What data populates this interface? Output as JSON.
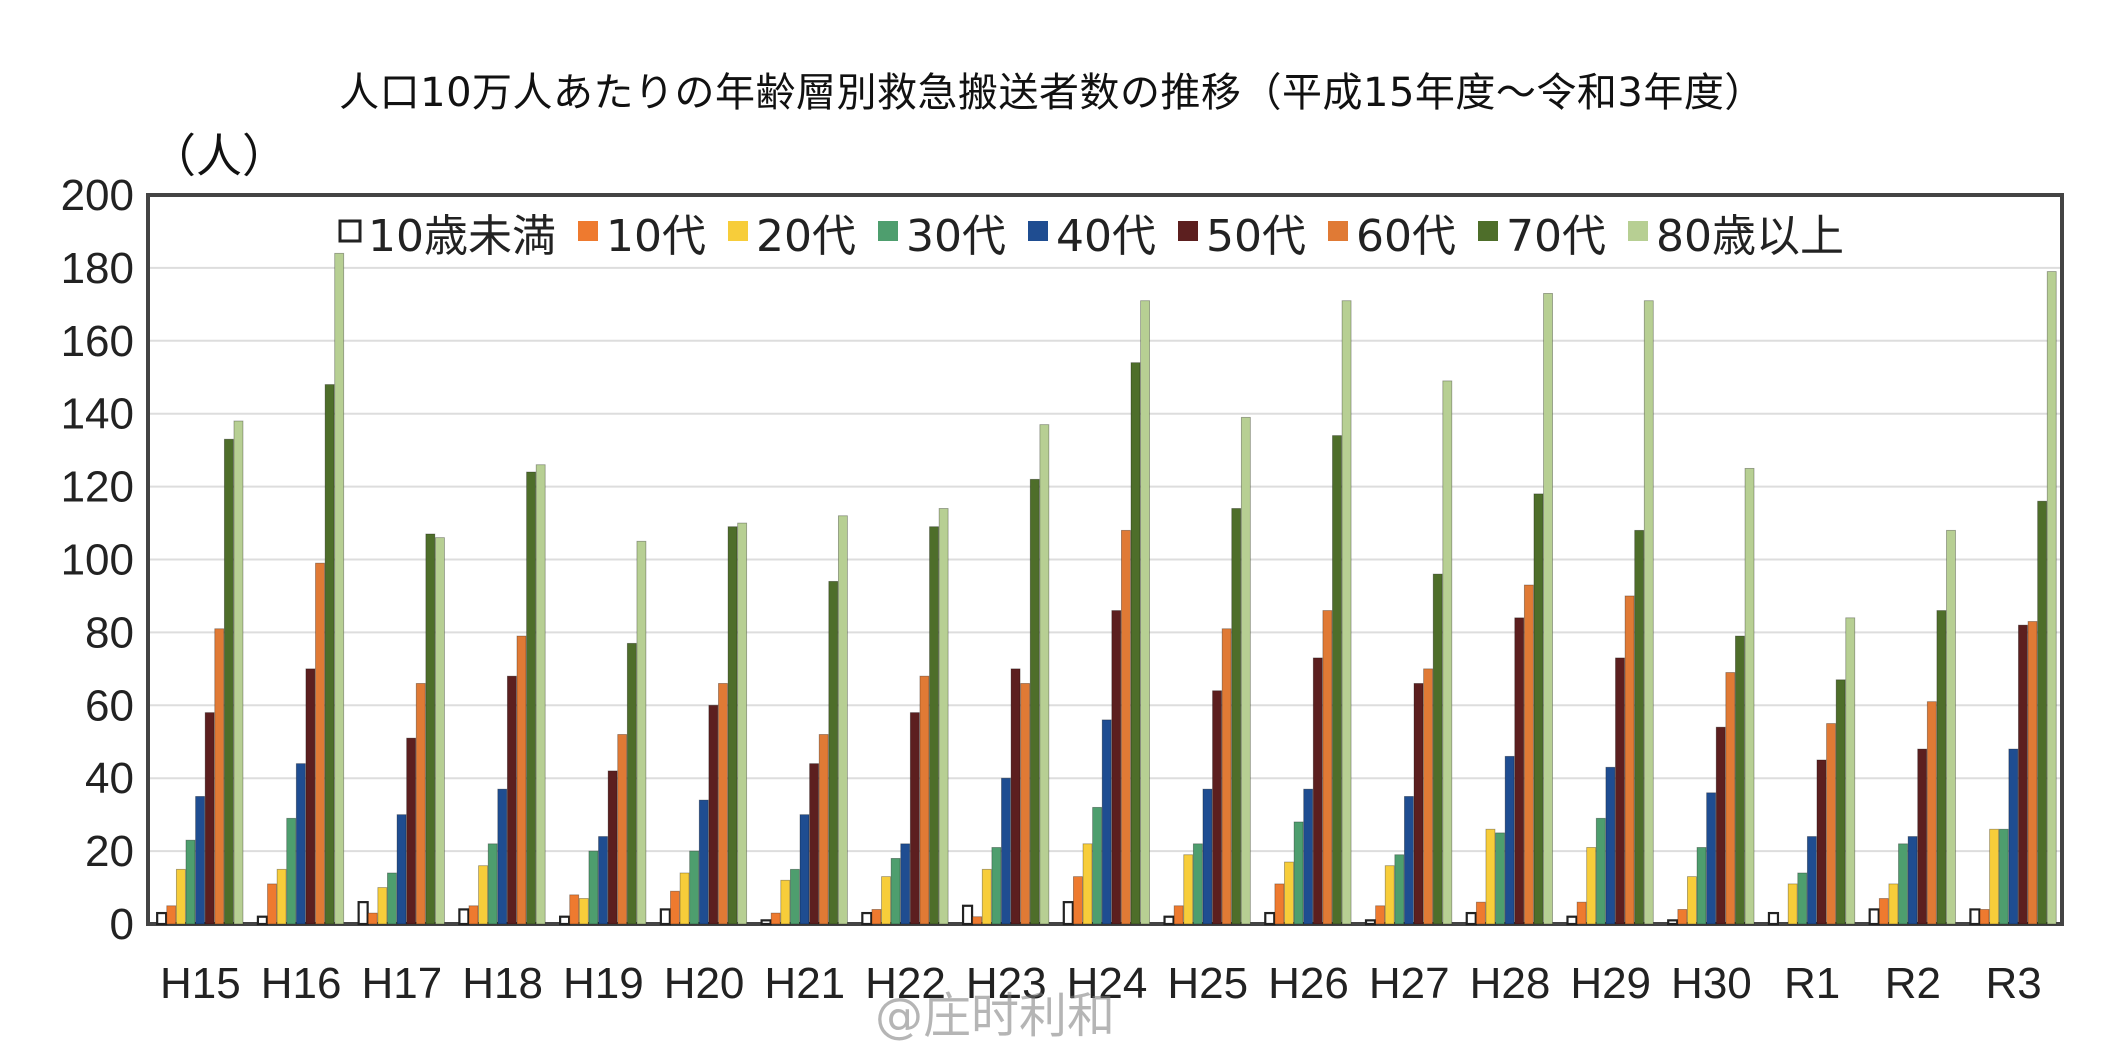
{
  "chart_data": {
    "type": "bar",
    "title": "人口10万人あたりの年齢層別救急搬送者数の推移（平成15年度～令和3年度）",
    "ylabel": "（人）",
    "xlabel": "",
    "ylim": [
      0,
      200
    ],
    "yticks": [
      0,
      20,
      40,
      60,
      80,
      100,
      120,
      140,
      160,
      180,
      200
    ],
    "grid": true,
    "legend_position": "top",
    "categories": [
      "H15",
      "H16",
      "H17",
      "H18",
      "H19",
      "H20",
      "H21",
      "H22",
      "H23",
      "H24",
      "H25",
      "H26",
      "H27",
      "H28",
      "H29",
      "H30",
      "R1",
      "R2",
      "R3"
    ],
    "series": [
      {
        "name": "10歳未満",
        "color": "#ffffff",
        "values": [
          3,
          2,
          6,
          4,
          2,
          4,
          1,
          3,
          5,
          6,
          2,
          3,
          1,
          3,
          2,
          1,
          3,
          4,
          4
        ]
      },
      {
        "name": "10代",
        "color": "#ee7a2f",
        "values": [
          5,
          11,
          3,
          5,
          8,
          9,
          3,
          4,
          2,
          13,
          5,
          11,
          5,
          6,
          6,
          4,
          0,
          7,
          4
        ]
      },
      {
        "name": "20代",
        "color": "#f7cd3a",
        "values": [
          15,
          15,
          10,
          16,
          7,
          14,
          12,
          13,
          15,
          22,
          19,
          17,
          16,
          26,
          21,
          13,
          11,
          11,
          26
        ]
      },
      {
        "name": "30代",
        "color": "#4e9e6e",
        "values": [
          23,
          29,
          14,
          22,
          20,
          20,
          15,
          18,
          21,
          32,
          22,
          28,
          19,
          25,
          29,
          21,
          14,
          22,
          26
        ]
      },
      {
        "name": "40代",
        "color": "#1f4d91",
        "values": [
          35,
          44,
          30,
          37,
          24,
          34,
          30,
          22,
          40,
          56,
          37,
          37,
          35,
          46,
          43,
          36,
          24,
          24,
          48
        ]
      },
      {
        "name": "50代",
        "color": "#5c1f1f",
        "values": [
          58,
          70,
          51,
          68,
          42,
          60,
          44,
          58,
          70,
          86,
          64,
          73,
          66,
          84,
          73,
          54,
          45,
          48,
          82
        ]
      },
      {
        "name": "60代",
        "color": "#e07a35",
        "values": [
          81,
          99,
          66,
          79,
          52,
          66,
          52,
          68,
          66,
          108,
          81,
          86,
          70,
          93,
          90,
          69,
          55,
          61,
          83
        ]
      },
      {
        "name": "70代",
        "color": "#4e6e2a",
        "values": [
          133,
          148,
          107,
          124,
          77,
          109,
          94,
          109,
          122,
          154,
          114,
          134,
          96,
          118,
          108,
          79,
          67,
          86,
          116
        ]
      },
      {
        "name": "80歳以上",
        "color": "#b7cf93",
        "values": [
          138,
          184,
          106,
          126,
          105,
          110,
          112,
          114,
          137,
          171,
          139,
          171,
          149,
          173,
          171,
          125,
          84,
          108,
          179
        ]
      }
    ]
  },
  "watermark": "@庄时利和"
}
